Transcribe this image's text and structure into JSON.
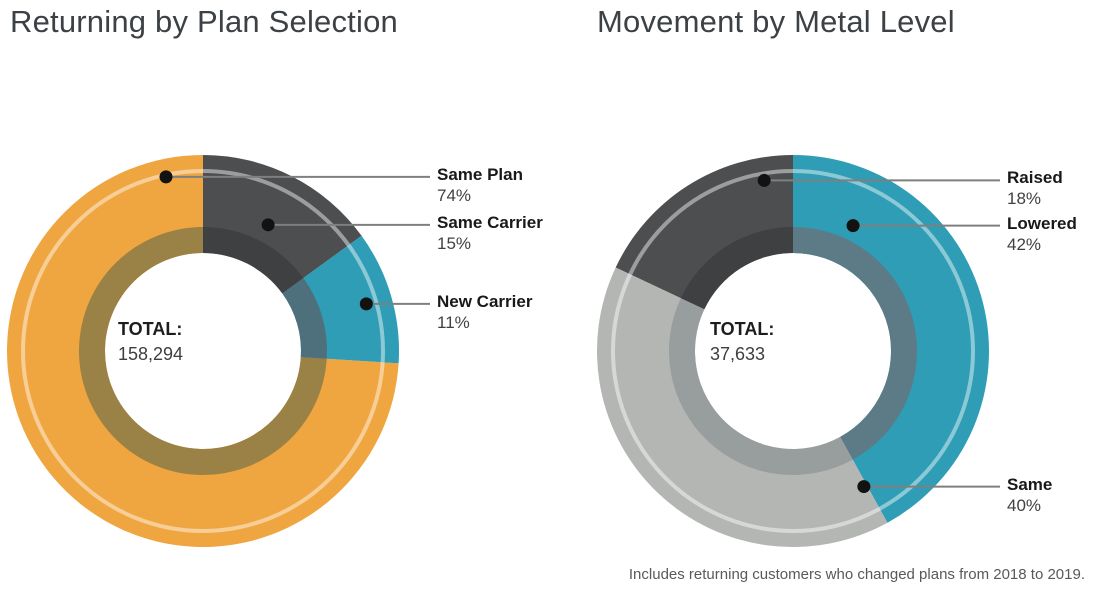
{
  "chart_data": [
    {
      "type": "donut",
      "title": "Returning by Plan Selection",
      "center_label": "TOTAL:",
      "total": 158294,
      "total_display": "158,294",
      "legend_position": "right-callouts",
      "slices": [
        {
          "label": "Same Plan",
          "pct": 74,
          "display": "74%",
          "color": "#F0A640",
          "inner_color": "#9A8145",
          "start_deg": 93.6,
          "end_deg": 360,
          "dot_angle_deg": 348,
          "dot_radius": 178
        },
        {
          "label": "Same Carrier",
          "pct": 15,
          "display": "15%",
          "color": "#4C4E4F",
          "inner_color": "#3E4041",
          "start_deg": 0,
          "end_deg": 54,
          "dot_angle_deg": 27.3,
          "dot_radius": 142
        },
        {
          "label": "New Carrier",
          "pct": 11,
          "display": "11%",
          "color": "#2E9DB5",
          "inner_color": "#4E6F7C",
          "start_deg": 54,
          "end_deg": 93.6,
          "dot_angle_deg": 73.9,
          "dot_radius": 170
        }
      ]
    },
    {
      "type": "donut",
      "title": "Movement by Metal Level",
      "center_label": "TOTAL:",
      "total": 37633,
      "total_display": "37,633",
      "legend_position": "right-callouts",
      "slices": [
        {
          "label": "Raised",
          "pct": 18,
          "display": "18%",
          "color": "#4C4E4F",
          "inner_color": "#3E4041",
          "start_deg": 295.2,
          "end_deg": 360,
          "dot_angle_deg": 350.4,
          "dot_radius": 173
        },
        {
          "label": "Lowered",
          "pct": 42,
          "display": "42%",
          "color": "#2E9DB5",
          "inner_color": "#5C7B87",
          "start_deg": 0,
          "end_deg": 151.2,
          "dot_angle_deg": 25.6,
          "dot_radius": 139
        },
        {
          "label": "Same",
          "pct": 40,
          "display": "40%",
          "color": "#B4B6B4",
          "inner_color": "#989D9E",
          "start_deg": 151.2,
          "end_deg": 295.2,
          "dot_angle_deg": 152.4,
          "dot_radius": 153
        }
      ]
    }
  ],
  "footnote": "Includes returning customers who changed plans from 2018 to 2019.",
  "style": {
    "background": "#FFFFFF",
    "title_color": "#3C4145",
    "label_color": "#191919",
    "value_color": "#414141",
    "callout_line_color": "#7F7F7F",
    "dot_color": "#121212",
    "highlight_ring_color": "rgba(255,255,255,0.45)",
    "footnote_color": "#58595B"
  }
}
